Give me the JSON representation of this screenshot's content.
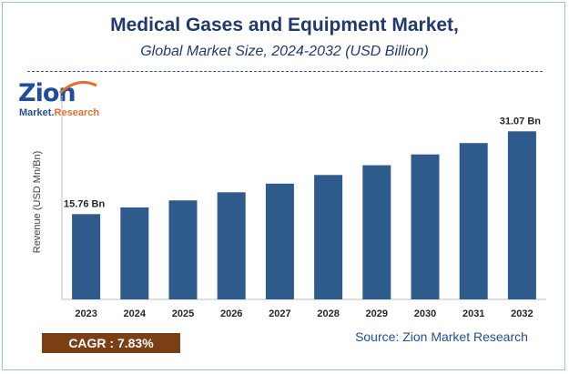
{
  "header": {
    "title": "Medical Gases and Equipment Market,",
    "subtitle": "Global Market Size, 2024-2032 (USD Billion)"
  },
  "logo": {
    "name": "Zion",
    "sub_prefix": "Market.",
    "sub_suffix": "Research"
  },
  "footer": {
    "cagr": "CAGR :  7.83%",
    "source": "Source: Zion Market Research"
  },
  "colors": {
    "bar": "#2f5b8c",
    "title": "#1f3a6e",
    "cagr_bg": "#7b3f16"
  },
  "chart_data": {
    "type": "bar",
    "title": "Medical Gases and Equipment Market,",
    "subtitle": "Global Market Size, 2024-2032 (USD Billion)",
    "xlabel": "",
    "ylabel": "Revenue (USD Mn/Bn)",
    "categories": [
      "2023",
      "2024",
      "2025",
      "2026",
      "2027",
      "2028",
      "2029",
      "2030",
      "2031",
      "2032"
    ],
    "values": [
      15.76,
      17.0,
      18.3,
      19.8,
      21.4,
      23.0,
      24.8,
      26.8,
      28.9,
      31.07
    ],
    "data_labels": [
      {
        "index": 0,
        "text": "15.76 Bn"
      },
      {
        "index": 9,
        "text": "31.07 Bn"
      }
    ],
    "ylim": [
      0,
      36
    ],
    "grid": false,
    "legend": "none"
  }
}
